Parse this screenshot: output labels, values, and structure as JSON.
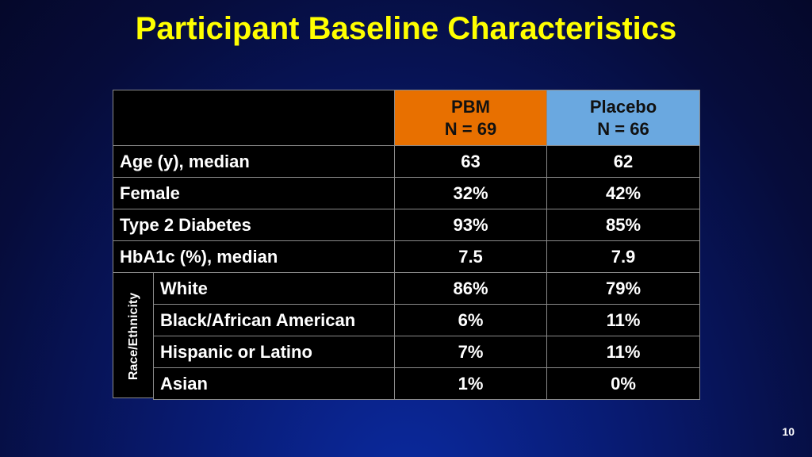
{
  "title": "Participant Baseline Characteristics",
  "table": {
    "columns": [
      {
        "name": "PBM",
        "n": "N = 69"
      },
      {
        "name": "Placebo",
        "n": "N = 66"
      }
    ],
    "rows": [
      [
        "Age (y), median",
        "63",
        "62"
      ],
      [
        "Female",
        "32%",
        "42%"
      ],
      [
        "Type 2 Diabetes",
        "93%",
        "85%"
      ],
      [
        "HbA1c (%), median",
        "7.5",
        "7.9"
      ]
    ],
    "group": {
      "label": "Race/Ethnicity",
      "rows": [
        [
          "White",
          "86%",
          "79%"
        ],
        [
          "Black/African American",
          "6%",
          "11%"
        ],
        [
          "Hispanic or Latino",
          "7%",
          "11%"
        ],
        [
          "Asian",
          "1%",
          "0%"
        ]
      ]
    }
  },
  "page_number": "10"
}
